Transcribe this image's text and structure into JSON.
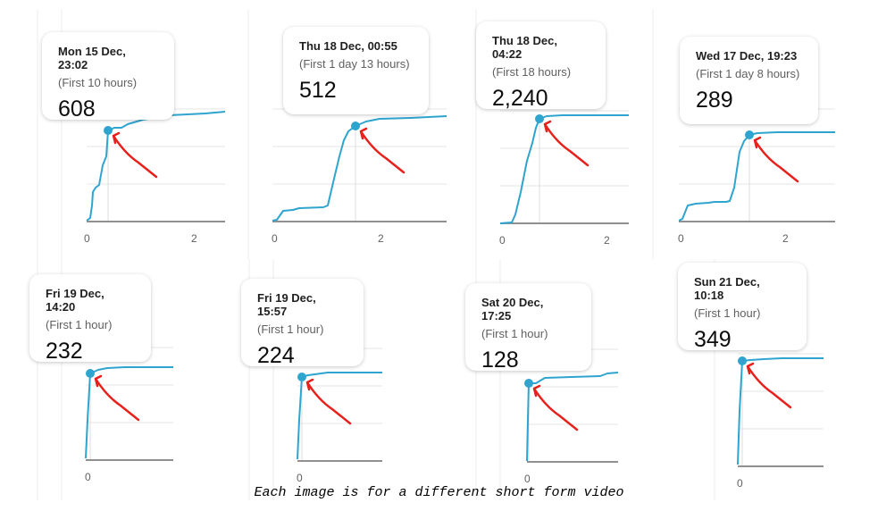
{
  "caption": "Each image is for a different short form video",
  "colors": {
    "line": "#2fa4cf",
    "arrow": "#e8201c",
    "axis": "#909090",
    "grid": "#e5e5e5"
  },
  "chart_data": [
    {
      "type": "line",
      "tooltip": {
        "date": "Mon 15 Dec, 23:02",
        "period": "(First 10 hours)",
        "value": "608"
      },
      "x_ticks": [
        "0",
        "2"
      ]
    },
    {
      "type": "line",
      "tooltip": {
        "date": "Thu 18 Dec, 00:55",
        "period": "(First 1 day 13 hours)",
        "value": "512"
      },
      "x_ticks": [
        "0",
        "2"
      ]
    },
    {
      "type": "line",
      "tooltip": {
        "date": "Thu 18 Dec, 04:22",
        "period": "(First 18 hours)",
        "value": "2,240"
      },
      "x_ticks": [
        "0",
        "2"
      ]
    },
    {
      "type": "line",
      "tooltip": {
        "date": "Wed 17 Dec, 19:23",
        "period": "(First 1 day 8 hours)",
        "value": "289"
      },
      "x_ticks": [
        "0",
        "2"
      ]
    },
    {
      "type": "line",
      "tooltip": {
        "date": "Fri 19 Dec, 14:20",
        "period": "(First 1 hour)",
        "value": "232"
      },
      "x_ticks": [
        "0"
      ]
    },
    {
      "type": "line",
      "tooltip": {
        "date": "Fri 19 Dec, 15:57",
        "period": "(First 1 hour)",
        "value": "224"
      },
      "x_ticks": [
        "0"
      ]
    },
    {
      "type": "line",
      "tooltip": {
        "date": "Sat 20 Dec, 17:25",
        "period": "(First 1 hour)",
        "value": "128"
      },
      "x_ticks": [
        "0"
      ]
    },
    {
      "type": "line",
      "tooltip": {
        "date": "Sun 21 Dec, 10:18",
        "period": "(First 1 hour)",
        "value": "349"
      },
      "x_ticks": [
        "0"
      ]
    }
  ]
}
